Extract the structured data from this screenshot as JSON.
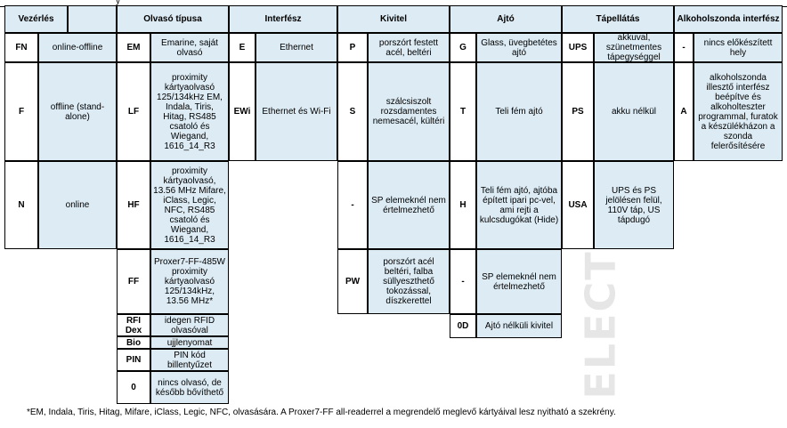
{
  "top_fragment": "y",
  "headers": {
    "vezerles": "Vezérlés",
    "olvaso": "Olvasó típusa",
    "interfesz": "Interfész",
    "kivitel": "Kivitel",
    "ajto": "Ajtó",
    "tapellatas": "Tápellátás",
    "alkohol": "Alkoholszonda interfész"
  },
  "vezerles": [
    {
      "code": "FN",
      "desc": "online-offline"
    },
    {
      "code": "F",
      "desc": "offline (stand-alone)"
    },
    {
      "code": "N",
      "desc": "online"
    }
  ],
  "olvaso": [
    {
      "code": "EM",
      "desc": "Emarine, saját olvasó"
    },
    {
      "code": "LF",
      "desc": "proximity kártyaolvasó 125/134kHz EM, Indala, Tiris, Hitag, RS485 csatoló és Wiegand, 1616_14_R3"
    },
    {
      "code": "HF",
      "desc": "proximity kártyaolvasó, 13.56 MHz Mifare, iClass, Legic, NFC, RS485 csatoló és Wiegand, 1616_14_R3"
    },
    {
      "code": "FF",
      "desc": "Proxer7-FF-485W proximity kártyaolvasó 125/134kHz, 13.56 MHz*"
    },
    {
      "code": "RFI Dex",
      "desc": "idegen RFID olvasóval"
    },
    {
      "code": "Bio",
      "desc": "ujjlenyomat"
    },
    {
      "code": "PIN",
      "desc": "PIN kód billentyűzet"
    },
    {
      "code": "0",
      "desc": "nincs olvasó, de később bővíthető"
    }
  ],
  "interfesz": [
    {
      "code": "E",
      "desc": "Ethernet"
    },
    {
      "code": "EWi",
      "desc": "Ethernet és Wi-Fi"
    }
  ],
  "kivitel": [
    {
      "code": "P",
      "desc": "porszórt festett acél, beltéri"
    },
    {
      "code": "S",
      "desc": "szálcsiszolt rozsdamentes nemesacél, kültéri"
    },
    {
      "code": "-",
      "desc": "SP elemeknél nem értelmezhető"
    },
    {
      "code": "PW",
      "desc": "porszórt acél beltéri, falba süllyeszthető tokozással, díszkerettel"
    }
  ],
  "ajto": [
    {
      "code": "G",
      "desc": "Glass, üvegbetétes ajtó"
    },
    {
      "code": "T",
      "desc": "Teli fém ajtó"
    },
    {
      "code": "H",
      "desc": "Teli fém ajtó, ajtóba épített ipari pc-vel, ami rejti a kulcsdugókat (Hide)"
    },
    {
      "code": "-",
      "desc": "SP elemeknél nem értelmezhető"
    },
    {
      "code": "0D",
      "desc": "Ajtó nélküli kivitel"
    }
  ],
  "tapellatas": [
    {
      "code": "UPS",
      "desc": "akkuval, szünetmentes tápegységgel"
    },
    {
      "code": "PS",
      "desc": "akku nélkül"
    },
    {
      "code": "USA",
      "desc": "UPS és PS jelölésen felül, 110V táp, US tápdugó"
    }
  ],
  "alkohol": [
    {
      "code": "-",
      "desc": "nincs előkészített hely"
    },
    {
      "code": "A",
      "desc": "alkoholszonda illesztő interfész beépítve és alkoholteszter programmal, furatok a készülékházon a szonda felerősítésére"
    }
  ],
  "footnote": "*EM, Indala, Tiris, Hitag, Mifare, iClass, Legic, NFC, olvasására. A Proxer7-FF all-readerrel a megrendelő meglevő kártyáival lesz nyitható a szekrény.",
  "watermark": "ELECT"
}
